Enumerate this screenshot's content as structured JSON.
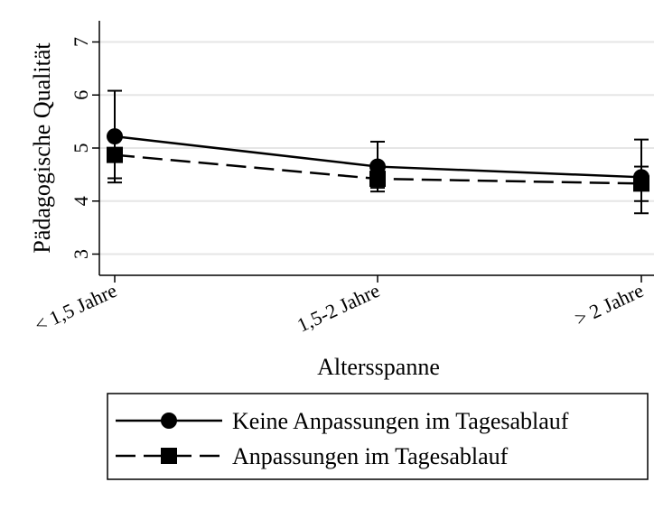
{
  "chart_data": {
    "type": "line",
    "xlabel": "Altersspanne",
    "ylabel": "Pädagogische Qualität",
    "categories": [
      "< 1,5 Jahre",
      "1,5-2 Jahre",
      "> 2 Jahre"
    ],
    "yticks": [
      "3",
      "4",
      "5",
      "6",
      "7"
    ],
    "ylim": [
      2.6,
      7.4
    ],
    "grid": true,
    "legend_placement": "bottom",
    "series": [
      {
        "name": "Keine Anpassungen im Tagesablauf",
        "marker": "circle",
        "line_style": "solid",
        "values": [
          5.22,
          4.65,
          4.45
        ],
        "ci_low": [
          4.35,
          4.18,
          3.77
        ],
        "ci_high": [
          6.08,
          5.12,
          5.16
        ]
      },
      {
        "name": "Anpassungen im Tagesablauf",
        "marker": "square",
        "line_style": "dashed",
        "values": [
          4.87,
          4.42,
          4.33
        ],
        "ci_low": [
          4.43,
          4.25,
          4.0
        ],
        "ci_high": [
          5.0,
          4.52,
          4.65
        ]
      }
    ]
  },
  "colors": {
    "ink": "#000000",
    "grid": "#e6e6e6",
    "background": "#ffffff"
  }
}
